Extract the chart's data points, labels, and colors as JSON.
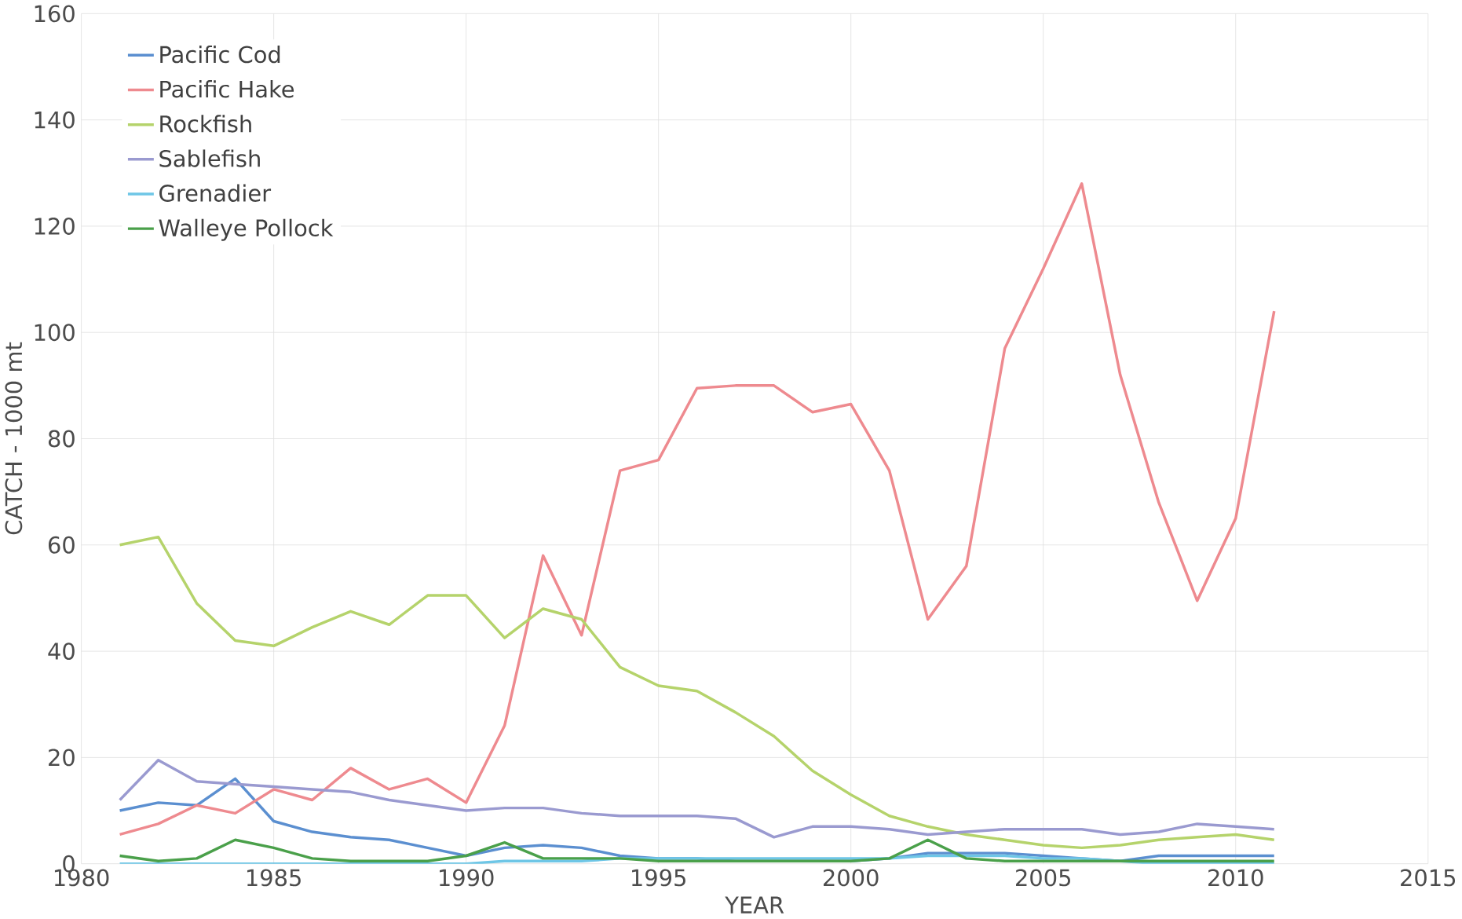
{
  "chart_data": {
    "type": "line",
    "xlabel": "YEAR",
    "ylabel": "CATCH - 1000 mt",
    "x": [
      1981,
      1982,
      1983,
      1984,
      1985,
      1986,
      1987,
      1988,
      1989,
      1990,
      1991,
      1992,
      1993,
      1994,
      1995,
      1996,
      1997,
      1998,
      1999,
      2000,
      2001,
      2002,
      2003,
      2004,
      2005,
      2006,
      2007,
      2008,
      2009,
      2010,
      2011
    ],
    "series": [
      {
        "name": "Pacific Cod",
        "color": "#5b8fd0",
        "values": [
          10,
          11.5,
          11,
          16,
          8,
          6,
          5,
          4.5,
          3,
          1.5,
          3,
          3.5,
          3,
          1.5,
          1,
          1,
          0.5,
          0.5,
          0.5,
          0.5,
          1,
          2,
          2,
          2,
          1.5,
          1,
          0.5,
          1.5,
          1.5,
          1.5,
          1.5
        ]
      },
      {
        "name": "Pacific Hake",
        "color": "#ee8a8f",
        "values": [
          5.5,
          7.5,
          11,
          9.5,
          14,
          12,
          18,
          14,
          16,
          11.5,
          26,
          58,
          43,
          74,
          76,
          89.5,
          90,
          90,
          85,
          86.5,
          74,
          46,
          56,
          97,
          112,
          128,
          92,
          68,
          49.5,
          65,
          104
        ]
      },
      {
        "name": "Rockfish",
        "color": "#b5d36b",
        "values": [
          60,
          61.5,
          49,
          42,
          41,
          44.5,
          47.5,
          45,
          50.5,
          50.5,
          42.5,
          48,
          46,
          37,
          33.5,
          32.5,
          28.5,
          24,
          17.5,
          13,
          9,
          7,
          5.5,
          4.5,
          3.5,
          3,
          3.5,
          4.5,
          5,
          5.5,
          4.5
        ]
      },
      {
        "name": "Sablefish",
        "color": "#9a9ad0",
        "values": [
          12,
          19.5,
          15.5,
          15,
          14.5,
          14,
          13.5,
          12,
          11,
          10,
          10.5,
          10.5,
          9.5,
          9,
          9,
          9,
          8.5,
          5,
          7,
          7,
          6.5,
          5.5,
          6,
          6.5,
          6.5,
          6.5,
          5.5,
          6,
          7.5,
          7,
          6.5
        ]
      },
      {
        "name": "Grenadier",
        "color": "#6ec6e6",
        "values": [
          0,
          0,
          0,
          0,
          0,
          0,
          0,
          0,
          0,
          0,
          0.5,
          0.5,
          0.5,
          1,
          1,
          1,
          1,
          1,
          1,
          1,
          1,
          1.5,
          1.5,
          1.5,
          1,
          1,
          0.5,
          0,
          0,
          0,
          0
        ]
      },
      {
        "name": "Walleye Pollock",
        "color": "#4aa04a",
        "values": [
          1.5,
          0.5,
          1,
          4.5,
          3,
          1,
          0.5,
          0.5,
          0.5,
          1.5,
          4,
          1,
          1,
          1,
          0.5,
          0.5,
          0.5,
          0.5,
          0.5,
          0.5,
          1,
          4.5,
          1,
          0.5,
          0.5,
          0.5,
          0.5,
          0.5,
          0.5,
          0.5,
          0.5
        ]
      }
    ],
    "xlim": [
      1980,
      2015
    ],
    "xticks": [
      1980,
      1985,
      1990,
      1995,
      2000,
      2005,
      2010,
      2015
    ],
    "ylim": [
      0,
      160
    ],
    "yticks": [
      0,
      20,
      40,
      60,
      80,
      100,
      120,
      140,
      160
    ],
    "grid": true,
    "legend": "top left",
    "marker": "none",
    "line_style": "solid"
  }
}
